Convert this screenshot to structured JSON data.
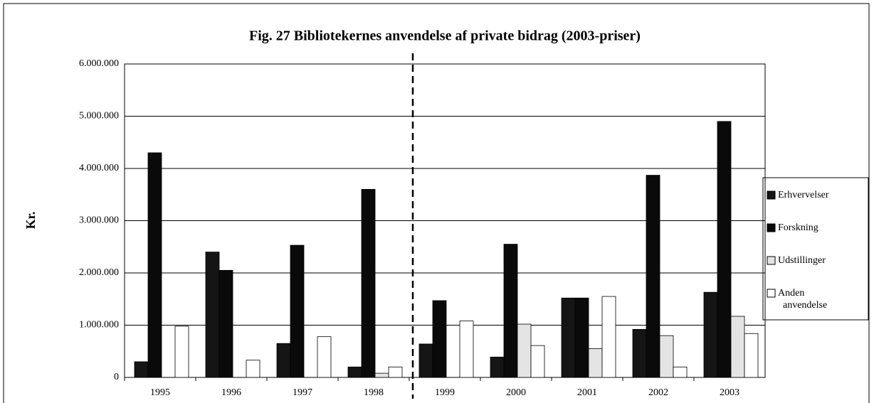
{
  "chart_data": {
    "type": "bar",
    "title": "Fig. 27 Bibliotekernes anvendelse af private bidrag (2003-priser)",
    "y_label": "Kr.",
    "categories": [
      "1995",
      "1996",
      "1997",
      "1998",
      "1999",
      "2000",
      "2001",
      "2002",
      "2003"
    ],
    "series": [
      {
        "name": "Erhvervelser",
        "color": "#151515",
        "values": [
          300000,
          2400000,
          650000,
          200000,
          640000,
          390000,
          1520000,
          920000,
          1630000
        ]
      },
      {
        "name": "Forskning",
        "color": "#0a0a0a",
        "values": [
          4300000,
          2050000,
          2530000,
          3600000,
          1470000,
          2550000,
          1520000,
          3870000,
          4900000
        ]
      },
      {
        "name": "Udstillinger",
        "color": "#e4e4e4",
        "values": [
          0,
          0,
          0,
          80000,
          0,
          1020000,
          550000,
          800000,
          1170000
        ]
      },
      {
        "name": "Anden anvendelse",
        "color": "#ffffff",
        "values": [
          980000,
          330000,
          780000,
          200000,
          1080000,
          610000,
          1550000,
          200000,
          840000
        ]
      }
    ],
    "ylim": [
      0,
      6000000
    ],
    "yticks": [
      0,
      {
        "value": 1000000,
        "label": "1.000.000"
      },
      {
        "value": 2000000,
        "label": "2.000.000"
      },
      {
        "value": 3000000,
        "label": "3.000.000"
      },
      {
        "value": 4000000,
        "label": "4.000.000"
      },
      {
        "value": 5000000,
        "label": "5.000.000"
      },
      {
        "value": 6000000,
        "label": "6.000.000"
      }
    ],
    "grid": true,
    "legend": "right"
  }
}
